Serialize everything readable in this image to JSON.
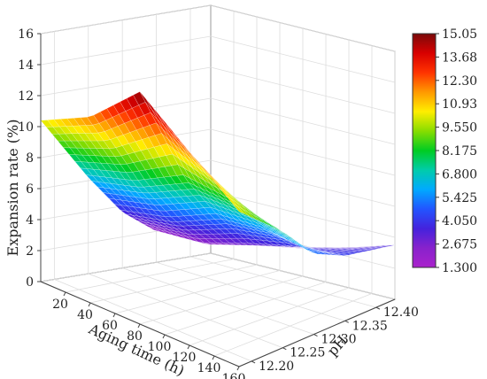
{
  "chart_data": {
    "type": "surface3d",
    "title": "",
    "xlabel": "Aging time (h)",
    "ylabel": "pH",
    "zlabel": "Expansion rate (%)",
    "x_ticks": [
      "20",
      "40",
      "60",
      "80",
      "100",
      "120",
      "140",
      "160"
    ],
    "y_ticks": [
      "12.20",
      "12.25",
      "12.30",
      "12.35",
      "12.40"
    ],
    "z_ticks": [
      "0",
      "2",
      "4",
      "6",
      "8",
      "10",
      "12",
      "14",
      "16"
    ],
    "xlim": [
      0,
      160
    ],
    "ylim": [
      12.18,
      12.43
    ],
    "zlim": [
      0,
      16
    ],
    "colorbar": {
      "min": 1.3,
      "max": 15.05,
      "ticks": [
        "15.05",
        "13.68",
        "12.30",
        "10.93",
        "9.550",
        "8.175",
        "6.800",
        "5.425",
        "4.050",
        "2.675",
        "1.300"
      ],
      "colormap": [
        "#7a0a0a",
        "#d80000",
        "#ff3300",
        "#ff9900",
        "#ffee00",
        "#88dd00",
        "#00cc22",
        "#00ccaa",
        "#00aaff",
        "#2255ff",
        "#4422dd",
        "#8822cc",
        "#aa22cc"
      ]
    },
    "grid": true,
    "surface": {
      "x": [
        0,
        40,
        80,
        120,
        160
      ],
      "y": [
        12.18,
        12.25,
        12.3,
        12.35,
        12.43
      ],
      "z": [
        [
          10.4,
          12.0,
          15.0,
          12.5,
          10.0
        ],
        [
          6.2,
          7.0,
          8.5,
          8.2,
          7.5
        ],
        [
          3.6,
          4.2,
          5.5,
          5.7,
          5.2
        ],
        [
          2.0,
          2.1,
          3.0,
          3.8,
          4.2
        ],
        [
          1.5,
          1.4,
          1.8,
          2.6,
          3.5
        ]
      ]
    }
  }
}
